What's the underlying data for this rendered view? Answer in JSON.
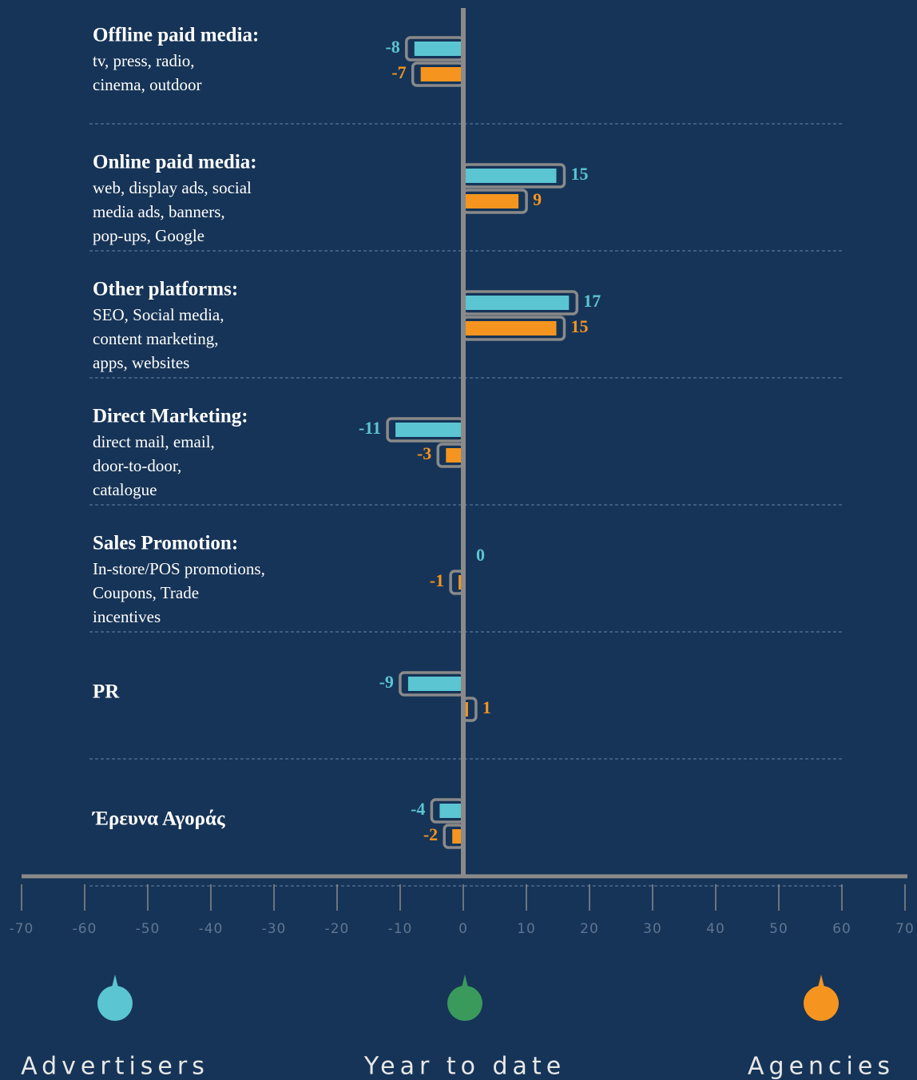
{
  "chart_data": {
    "type": "bar",
    "orientation": "horizontal",
    "categories": [
      "Offline paid media:",
      "Online paid media:",
      "Other platforms:",
      "Direct Marketing:",
      "Sales Promotion:",
      "PR",
      "Έρευνα Αγοράς"
    ],
    "descriptions": [
      [
        "tv, press, radio,",
        "cinema, outdoor"
      ],
      [
        "web, display ads, social",
        "media ads, banners,",
        "pop-ups, Google"
      ],
      [
        "SEO, Social media,",
        "content marketing,",
        "apps, websites"
      ],
      [
        "direct mail, email,",
        "door-to-door,",
        "catalogue"
      ],
      [
        "In-store/POS promotions,",
        "Coupons, Trade",
        "incentives"
      ],
      null,
      null
    ],
    "series": [
      {
        "name": "Advertisers",
        "color": "#5bc5d2",
        "values": [
          -8,
          15,
          17,
          -11,
          0,
          -9,
          -4
        ]
      },
      {
        "name": "Agencies",
        "color": "#f5951f",
        "values": [
          -7,
          9,
          15,
          -3,
          -1,
          1,
          -2
        ]
      }
    ],
    "legend_center": {
      "label": "Year to date",
      "color": "#3a9a5c"
    },
    "xlim": [
      -70,
      70
    ],
    "xticks": [
      -70,
      -60,
      -50,
      -40,
      -30,
      -20,
      -10,
      0,
      10,
      20,
      30,
      40,
      50,
      60,
      70
    ]
  }
}
